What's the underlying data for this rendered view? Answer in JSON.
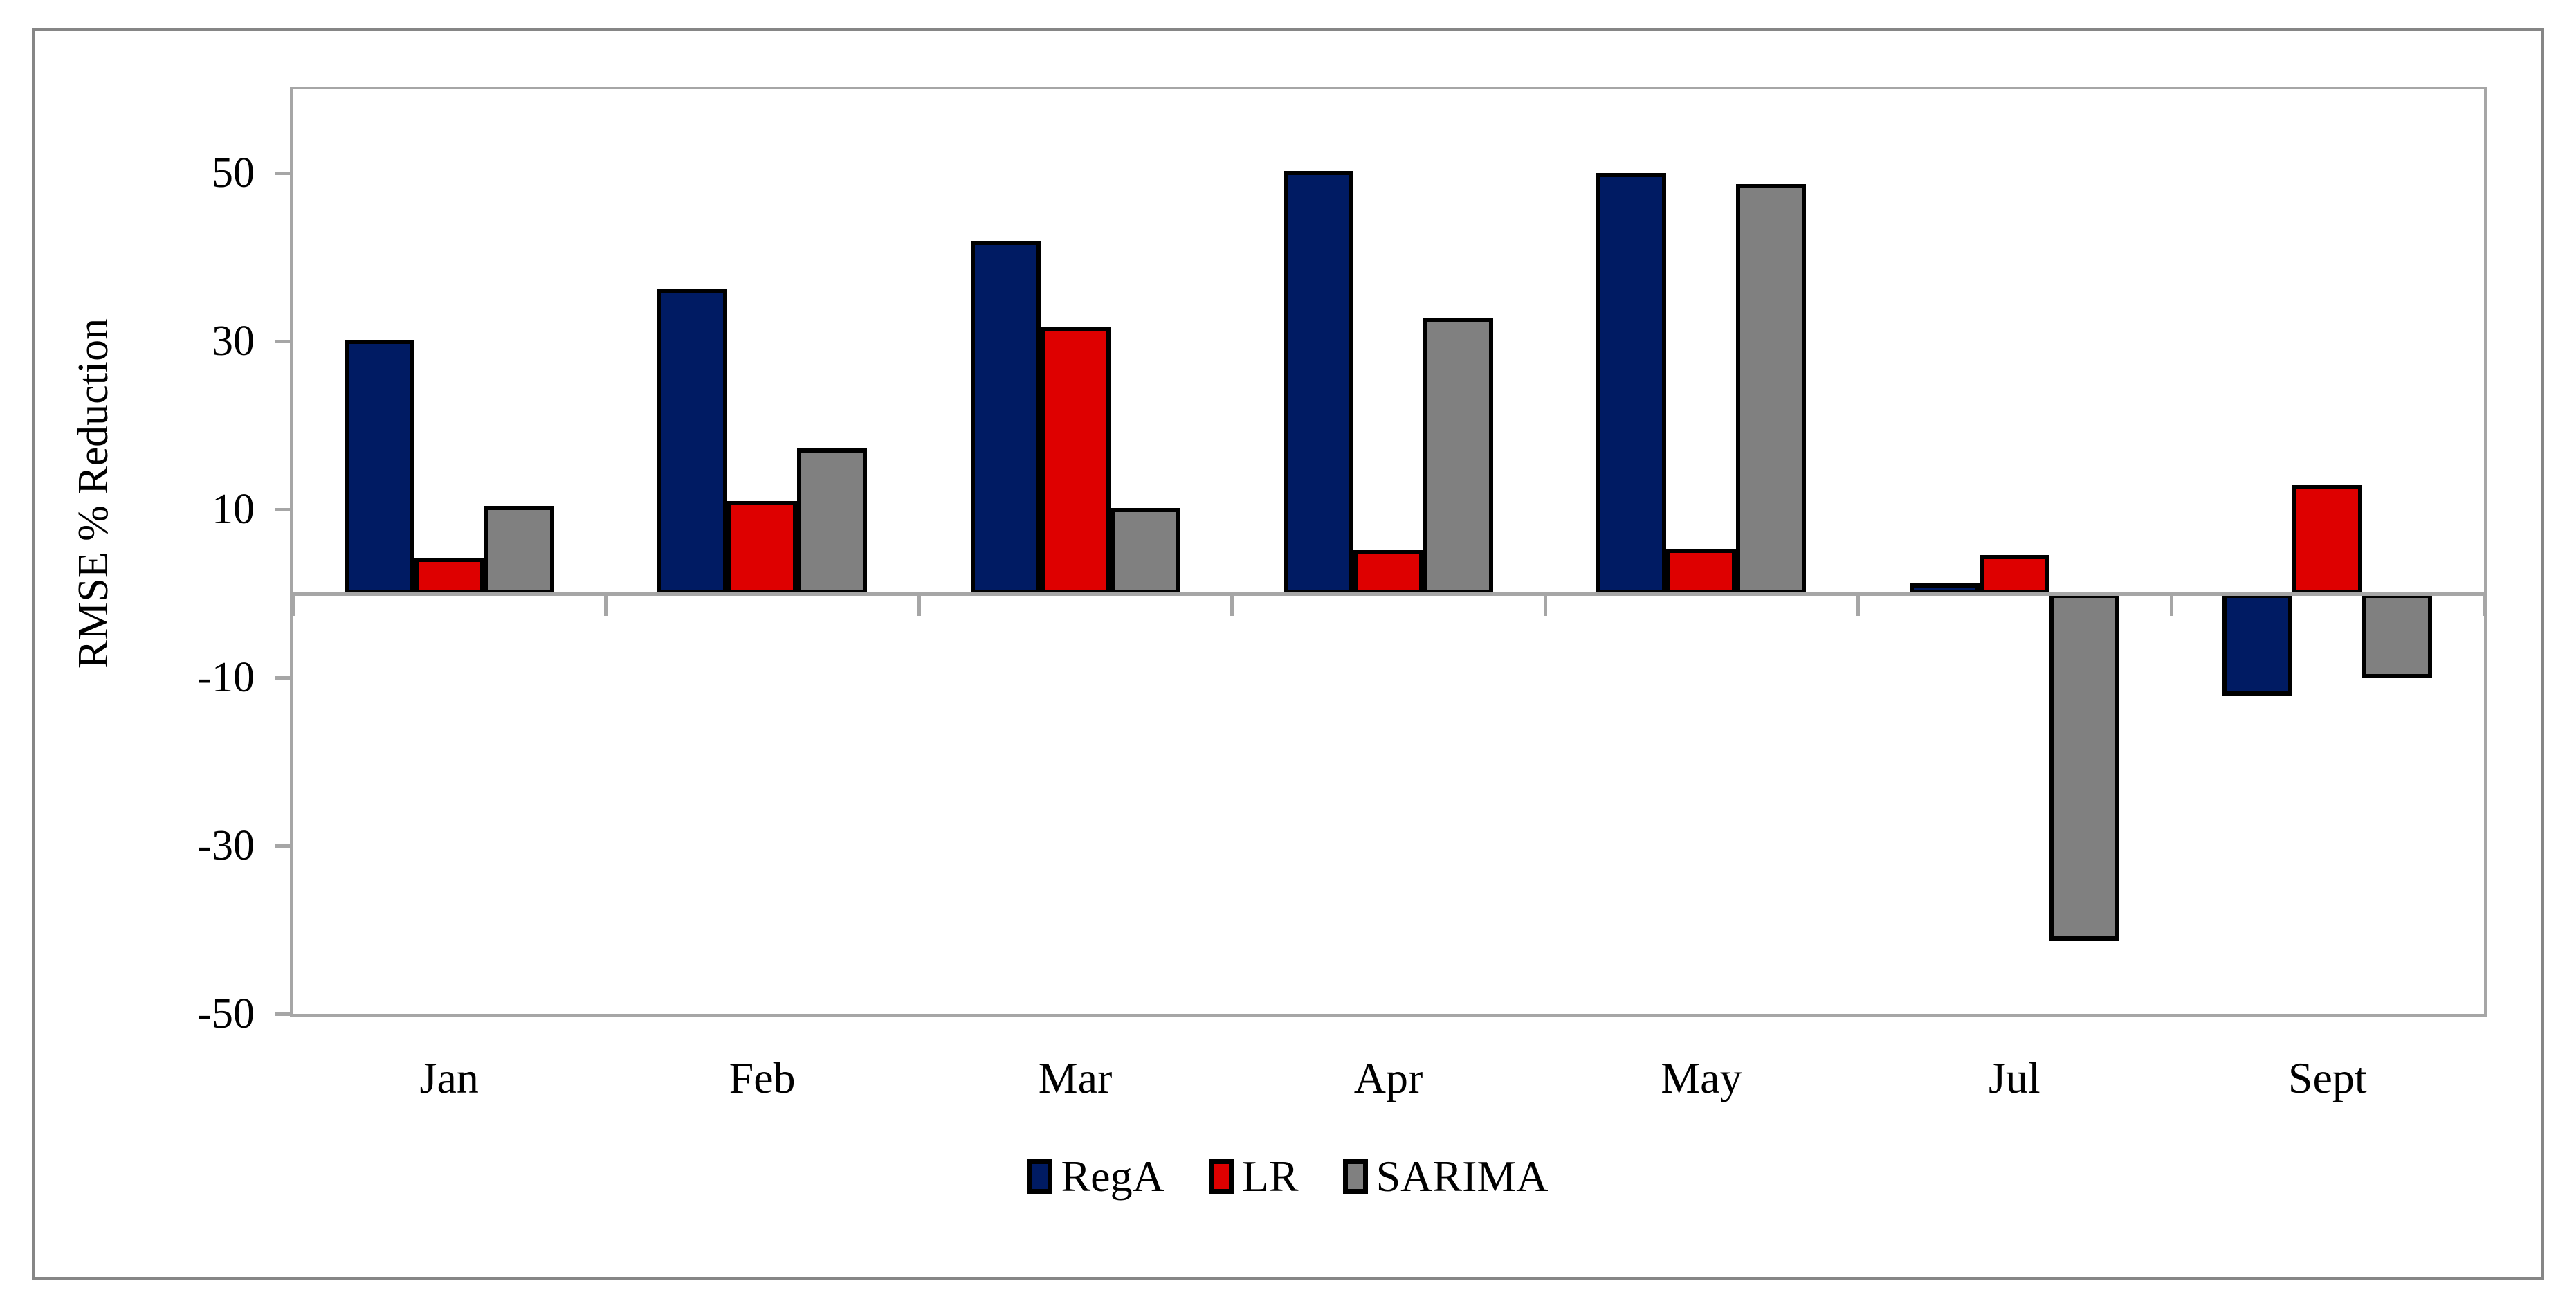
{
  "chart_data": {
    "type": "bar",
    "title": "",
    "ylabel": "RMSE % Reduction",
    "xlabel": "",
    "categories": [
      "Jan",
      "Feb",
      "Mar",
      "Apr",
      "May",
      "Jul",
      "Sept"
    ],
    "series": [
      {
        "name": "RegA",
        "color": "#001b63",
        "values": [
          30.2,
          36.3,
          42.0,
          50.3,
          50.0,
          1.2,
          -12.1
        ]
      },
      {
        "name": "LR",
        "color": "#de0000",
        "values": [
          4.3,
          11.0,
          31.8,
          5.2,
          5.3,
          4.6,
          12.9
        ]
      },
      {
        "name": "SARIMA",
        "color": "#808080",
        "values": [
          10.4,
          17.3,
          10.2,
          32.8,
          48.7,
          -41.3,
          -10.1
        ]
      }
    ],
    "yticks": [
      50,
      30,
      10,
      -10,
      -30,
      -50
    ],
    "ylim": [
      -50,
      60
    ],
    "grid": false,
    "legend_position": "bottom",
    "bar_border_color": "#000000",
    "axis_color": "#a6a6a6",
    "outer_border_color": "#868686"
  }
}
